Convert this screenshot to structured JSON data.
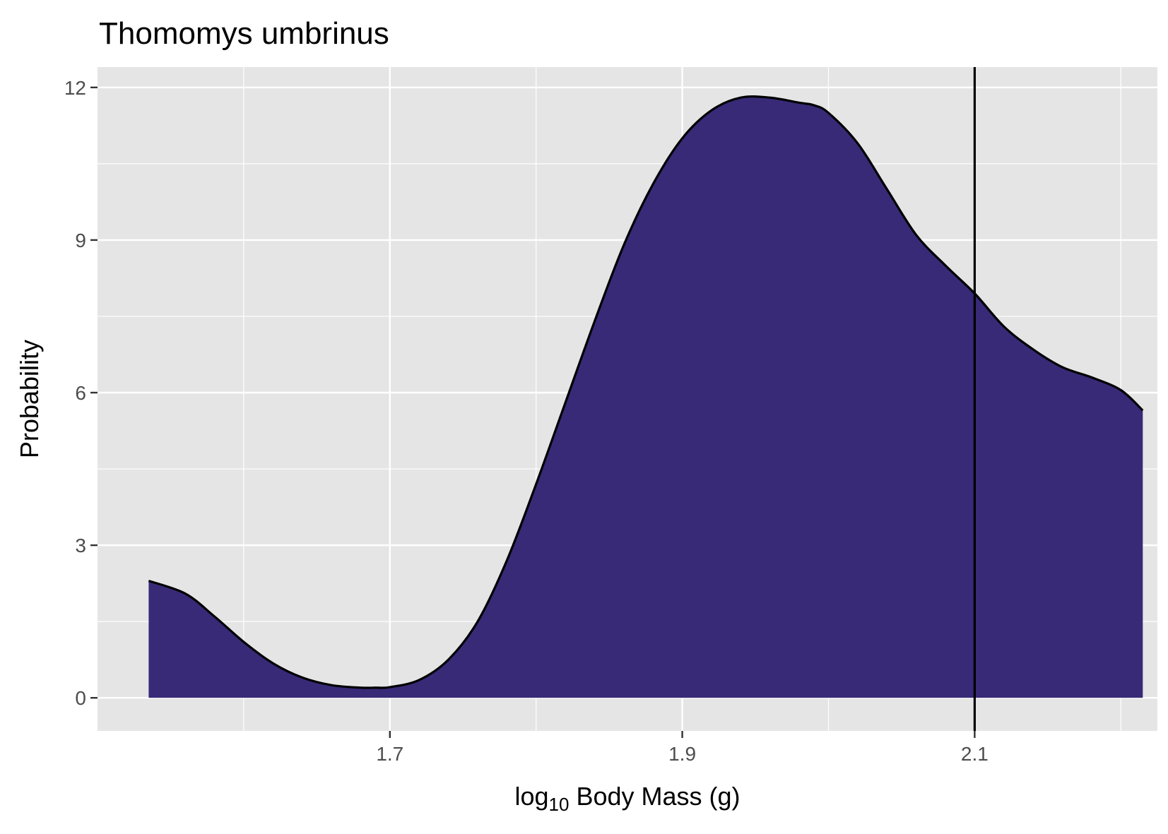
{
  "chart_data": {
    "type": "area",
    "title": "Thomomys umbrinus",
    "xlabel": {
      "prefix": "log",
      "subscript": "10",
      "suffix": " Body Mass (g)"
    },
    "ylabel": "Probability",
    "xlim": [
      1.5,
      2.225
    ],
    "ylim": [
      -0.65,
      12.4
    ],
    "x_ticks": [
      1.7,
      1.9,
      2.1
    ],
    "x_tick_labels": [
      "1.7",
      "1.9",
      "2.1"
    ],
    "y_ticks": [
      0,
      3,
      6,
      9,
      12
    ],
    "y_tick_labels": [
      "0",
      "3",
      "6",
      "9",
      "12"
    ],
    "grid": true,
    "legend": "none",
    "vline_x": 2.1,
    "colors": {
      "fill": "#382A77",
      "line": "#000000",
      "panel": "#E5E5E5",
      "grid": "#FFFFFF",
      "tick_text": "#4D4D4D"
    },
    "series": [
      {
        "x": [
          1.535,
          1.56,
          1.58,
          1.6,
          1.62,
          1.64,
          1.66,
          1.68,
          1.69,
          1.7,
          1.72,
          1.74,
          1.76,
          1.78,
          1.8,
          1.82,
          1.84,
          1.86,
          1.88,
          1.9,
          1.92,
          1.94,
          1.96,
          1.98,
          1.99,
          2.0,
          2.02,
          2.04,
          2.06,
          2.08,
          2.1,
          2.12,
          2.14,
          2.16,
          2.18,
          2.2,
          2.215
        ],
        "y": [
          2.3,
          2.05,
          1.6,
          1.1,
          0.68,
          0.4,
          0.25,
          0.2,
          0.2,
          0.21,
          0.35,
          0.75,
          1.5,
          2.7,
          4.2,
          5.8,
          7.4,
          8.9,
          10.1,
          11.0,
          11.55,
          11.8,
          11.8,
          11.7,
          11.65,
          11.5,
          10.9,
          10.0,
          9.1,
          8.5,
          7.95,
          7.3,
          6.85,
          6.5,
          6.3,
          6.05,
          5.65
        ]
      }
    ]
  }
}
